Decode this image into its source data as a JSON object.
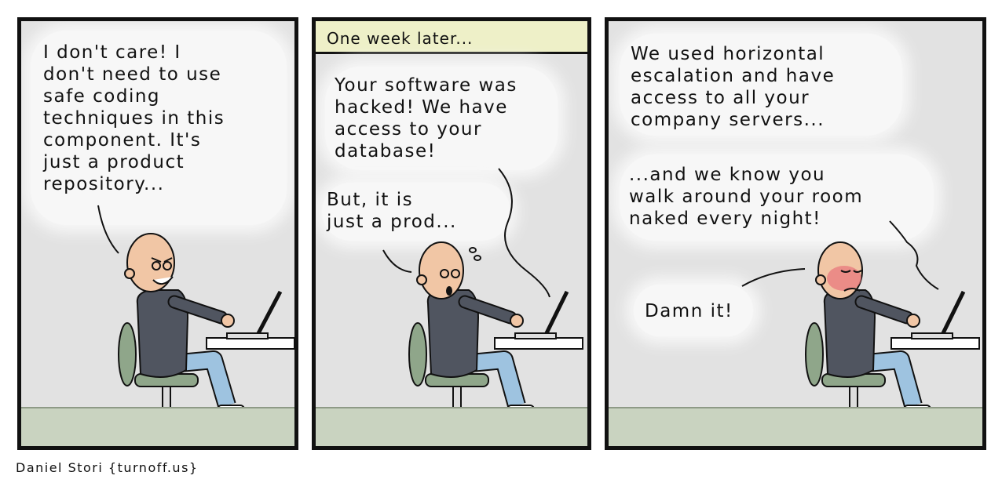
{
  "panels": [
    {
      "speech": "I don't care! I\ndon't need to use\nsafe coding\ntechniques in this\ncomponent. It's\njust a product\nrepository..."
    },
    {
      "caption": "One week later...",
      "hacker": "Your software was\nhacked! We have\naccess to your\ndatabase!",
      "dev": "But, it is\njust a prod..."
    },
    {
      "hacker_1": "We used horizontal\nescalation and have\naccess to all your\ncompany servers...",
      "hacker_2": "...and we know you\nwalk around your room\nnaked every night!",
      "dev": "Damn it!"
    }
  ],
  "credit": "Daniel Stori {turnoff.us}"
}
